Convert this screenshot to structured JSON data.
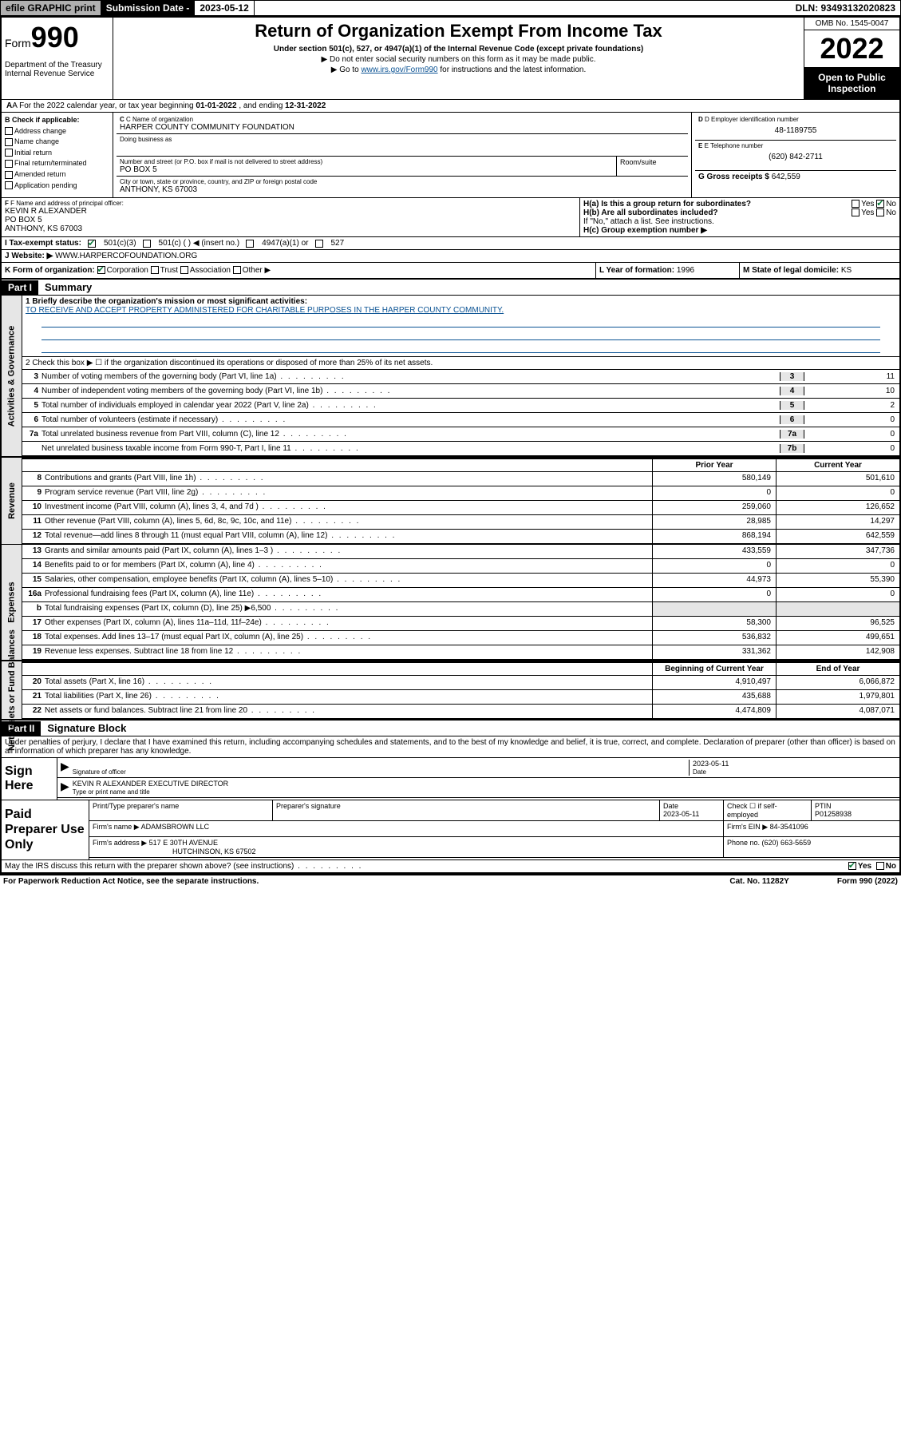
{
  "top": {
    "efile": "efile GRAPHIC print",
    "sub_label": "Submission Date - ",
    "sub_date": "2023-05-12",
    "dln": "DLN: 93493132020823"
  },
  "header": {
    "form_prefix": "Form",
    "form_num": "990",
    "dept": "Department of the Treasury",
    "irs": "Internal Revenue Service",
    "title": "Return of Organization Exempt From Income Tax",
    "subtitle": "Under section 501(c), 527, or 4947(a)(1) of the Internal Revenue Code (except private foundations)",
    "note1": "▶ Do not enter social security numbers on this form as it may be made public.",
    "note2_pre": "▶ Go to ",
    "note2_link": "www.irs.gov/Form990",
    "note2_post": " for instructions and the latest information.",
    "omb": "OMB No. 1545-0047",
    "year": "2022",
    "open": "Open to Public Inspection"
  },
  "sectionA": {
    "text_a": "A For the 2022 calendar year, or tax year beginning ",
    "begin": "01-01-2022",
    "mid": " , and ending ",
    "end": "12-31-2022"
  },
  "colB": {
    "label": "B Check if applicable:",
    "addr_change": "Address change",
    "name_change": "Name change",
    "initial": "Initial return",
    "final": "Final return/terminated",
    "amended": "Amended return",
    "app_pending": "Application pending"
  },
  "colC": {
    "name_label": "C Name of organization",
    "name": "HARPER COUNTY COMMUNITY FOUNDATION",
    "dba_label": "Doing business as",
    "addr_label": "Number and street (or P.O. box if mail is not delivered to street address)",
    "room_label": "Room/suite",
    "addr": "PO BOX 5",
    "city_label": "City or town, state or province, country, and ZIP or foreign postal code",
    "city": "ANTHONY, KS  67003"
  },
  "colD": {
    "ein_label": "D Employer identification number",
    "ein": "48-1189755",
    "phone_label": "E Telephone number",
    "phone": "(620) 842-2711",
    "gross_label": "G Gross receipts $ ",
    "gross": "642,559"
  },
  "officer": {
    "label": "F Name and address of principal officer:",
    "name": "KEVIN R ALEXANDER",
    "addr1": "PO BOX 5",
    "addr2": "ANTHONY, KS  67003"
  },
  "h": {
    "ha": "H(a)  Is this a group return for subordinates?",
    "hb": "H(b)  Are all subordinates included?",
    "hb_note": "If \"No,\" attach a list. See instructions.",
    "hc": "H(c)  Group exemption number ▶",
    "yes": "Yes",
    "no": "No"
  },
  "taxStatus": {
    "label": "I  Tax-exempt status:",
    "c3": "501(c)(3)",
    "c_insert": "501(c) (  ) ◀ (insert no.)",
    "a4947": "4947(a)(1) or",
    "s527": "527"
  },
  "website": {
    "label": "J  Website: ▶",
    "url": "WWW.HARPERCOFOUNDATION.ORG"
  },
  "k": {
    "label": "K Form of organization:",
    "corp": "Corporation",
    "trust": "Trust",
    "assoc": "Association",
    "other": "Other ▶"
  },
  "l": {
    "label": "L Year of formation: ",
    "val": "1996"
  },
  "m": {
    "label": "M State of legal domicile: ",
    "val": "KS"
  },
  "part1": {
    "header": "Part I",
    "title": "Summary",
    "line1_label": "1  Briefly describe the organization's mission or most significant activities:",
    "mission": "TO RECEIVE AND ACCEPT PROPERTY ADMINISTERED FOR CHARITABLE PURPOSES IN THE HARPER COUNTY COMMUNITY.",
    "line2": "2  Check this box ▶ ☐  if the organization discontinued its operations or disposed of more than 25% of its net assets.",
    "side_gov": "Activities & Governance",
    "side_rev": "Revenue",
    "side_exp": "Expenses",
    "side_net": "Net Assets or Fund Balances",
    "hdr_prior": "Prior Year",
    "hdr_curr": "Current Year",
    "hdr_begin": "Beginning of Current Year",
    "hdr_end": "End of Year"
  },
  "gov_lines": [
    {
      "n": "3",
      "d": "Number of voting members of the governing body (Part VI, line 1a)",
      "c": "3",
      "v": "11"
    },
    {
      "n": "4",
      "d": "Number of independent voting members of the governing body (Part VI, line 1b)",
      "c": "4",
      "v": "10"
    },
    {
      "n": "5",
      "d": "Total number of individuals employed in calendar year 2022 (Part V, line 2a)",
      "c": "5",
      "v": "2"
    },
    {
      "n": "6",
      "d": "Total number of volunteers (estimate if necessary)",
      "c": "6",
      "v": "0"
    },
    {
      "n": "7a",
      "d": "Total unrelated business revenue from Part VIII, column (C), line 12",
      "c": "7a",
      "v": "0"
    },
    {
      "n": "",
      "d": "Net unrelated business taxable income from Form 990-T, Part I, line 11",
      "c": "7b",
      "v": "0"
    }
  ],
  "rev_lines": [
    {
      "n": "8",
      "d": "Contributions and grants (Part VIII, line 1h)",
      "p": "580,149",
      "c": "501,610"
    },
    {
      "n": "9",
      "d": "Program service revenue (Part VIII, line 2g)",
      "p": "0",
      "c": "0"
    },
    {
      "n": "10",
      "d": "Investment income (Part VIII, column (A), lines 3, 4, and 7d )",
      "p": "259,060",
      "c": "126,652"
    },
    {
      "n": "11",
      "d": "Other revenue (Part VIII, column (A), lines 5, 6d, 8c, 9c, 10c, and 11e)",
      "p": "28,985",
      "c": "14,297"
    },
    {
      "n": "12",
      "d": "Total revenue—add lines 8 through 11 (must equal Part VIII, column (A), line 12)",
      "p": "868,194",
      "c": "642,559"
    }
  ],
  "exp_lines": [
    {
      "n": "13",
      "d": "Grants and similar amounts paid (Part IX, column (A), lines 1–3 )",
      "p": "433,559",
      "c": "347,736"
    },
    {
      "n": "14",
      "d": "Benefits paid to or for members (Part IX, column (A), line 4)",
      "p": "0",
      "c": "0"
    },
    {
      "n": "15",
      "d": "Salaries, other compensation, employee benefits (Part IX, column (A), lines 5–10)",
      "p": "44,973",
      "c": "55,390"
    },
    {
      "n": "16a",
      "d": "Professional fundraising fees (Part IX, column (A), line 11e)",
      "p": "0",
      "c": "0"
    },
    {
      "n": "b",
      "d": "Total fundraising expenses (Part IX, column (D), line 25) ▶6,500",
      "p": "",
      "c": "",
      "shaded": true
    },
    {
      "n": "17",
      "d": "Other expenses (Part IX, column (A), lines 11a–11d, 11f–24e)",
      "p": "58,300",
      "c": "96,525"
    },
    {
      "n": "18",
      "d": "Total expenses. Add lines 13–17 (must equal Part IX, column (A), line 25)",
      "p": "536,832",
      "c": "499,651"
    },
    {
      "n": "19",
      "d": "Revenue less expenses. Subtract line 18 from line 12",
      "p": "331,362",
      "c": "142,908"
    }
  ],
  "net_lines": [
    {
      "n": "20",
      "d": "Total assets (Part X, line 16)",
      "p": "4,910,497",
      "c": "6,066,872"
    },
    {
      "n": "21",
      "d": "Total liabilities (Part X, line 26)",
      "p": "435,688",
      "c": "1,979,801"
    },
    {
      "n": "22",
      "d": "Net assets or fund balances. Subtract line 21 from line 20",
      "p": "4,474,809",
      "c": "4,087,071"
    }
  ],
  "part2": {
    "header": "Part II",
    "title": "Signature Block",
    "declare": "Under penalties of perjury, I declare that I have examined this return, including accompanying schedules and statements, and to the best of my knowledge and belief, it is true, correct, and complete. Declaration of preparer (other than officer) is based on all information of which preparer has any knowledge."
  },
  "sign": {
    "label": "Sign Here",
    "sig_label": "Signature of officer",
    "date": "2023-05-11",
    "date_label": "Date",
    "name": "KEVIN R ALEXANDER  EXECUTIVE DIRECTOR",
    "name_label": "Type or print name and title"
  },
  "prep": {
    "label": "Paid Preparer Use Only",
    "h1": "Print/Type preparer's name",
    "h2": "Preparer's signature",
    "h3": "Date",
    "h3v": "2023-05-11",
    "h4": "Check ☐ if self-employed",
    "h5": "PTIN",
    "h5v": "P01258938",
    "firm_label": "Firm's name    ▶",
    "firm": "ADAMSBROWN LLC",
    "ein_label": "Firm's EIN ▶",
    "ein": "84-3541096",
    "addr_label": "Firm's address ▶",
    "addr1": "517 E 30TH AVENUE",
    "addr2": "HUTCHINSON, KS  67502",
    "phone_label": "Phone no. ",
    "phone": "(620) 663-5659"
  },
  "discuss": {
    "q": "May the IRS discuss this return with the preparer shown above? (see instructions)",
    "yes": "Yes",
    "no": "No"
  },
  "footer": {
    "left": "For Paperwork Reduction Act Notice, see the separate instructions.",
    "mid": "Cat. No. 11282Y",
    "right": "Form 990 (2022)"
  }
}
